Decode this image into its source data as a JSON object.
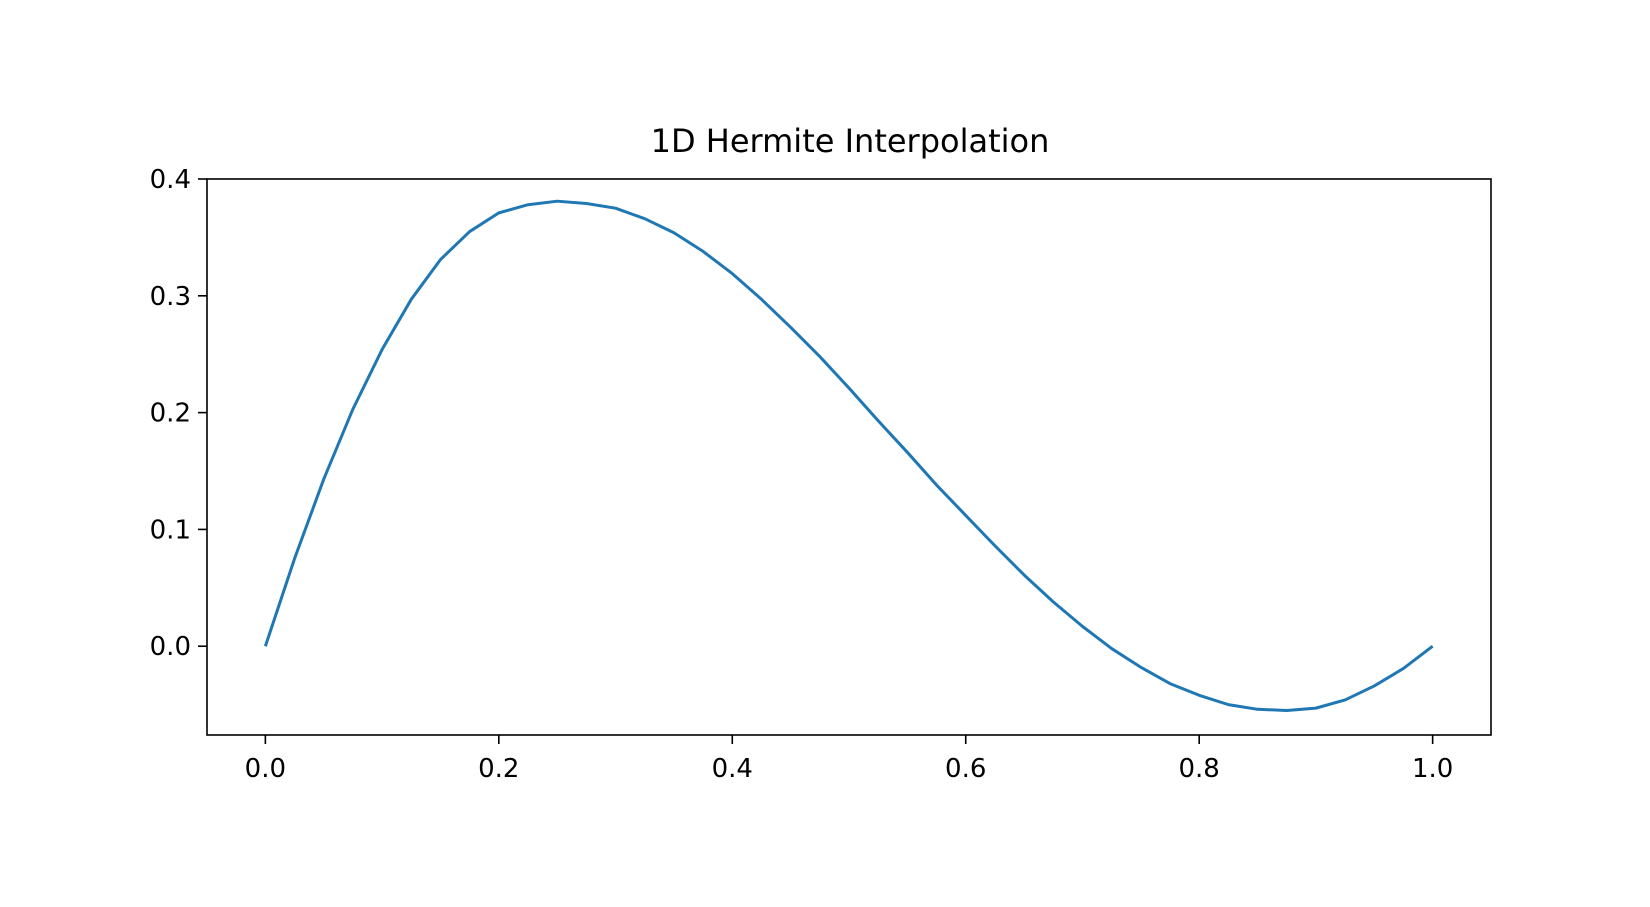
{
  "chart_data": {
    "type": "line",
    "title": "1D Hermite Interpolation",
    "xlabel": "",
    "ylabel": "",
    "xlim": [
      -0.05,
      1.05
    ],
    "ylim": [
      -0.076,
      0.4
    ],
    "x_ticks": [
      0.0,
      0.2,
      0.4,
      0.6,
      0.8,
      1.0
    ],
    "x_tick_labels": [
      "0.0",
      "0.2",
      "0.4",
      "0.6",
      "0.8",
      "1.0"
    ],
    "y_ticks": [
      0.0,
      0.1,
      0.2,
      0.3,
      0.4
    ],
    "y_tick_labels": [
      "0.0",
      "0.1",
      "0.2",
      "0.3",
      "0.4"
    ],
    "grid": false,
    "legend": "none",
    "series": [
      {
        "color": "#1f77b4",
        "x": [
          0.0,
          0.025,
          0.05,
          0.075,
          0.1,
          0.125,
          0.15,
          0.175,
          0.2,
          0.225,
          0.25,
          0.275,
          0.3,
          0.325,
          0.35,
          0.375,
          0.4,
          0.425,
          0.45,
          0.475,
          0.5,
          0.525,
          0.55,
          0.575,
          0.6,
          0.625,
          0.65,
          0.675,
          0.7,
          0.725,
          0.75,
          0.775,
          0.8,
          0.825,
          0.85,
          0.875,
          0.9,
          0.925,
          0.95,
          0.975,
          1.0
        ],
        "y": [
          0.0,
          0.075,
          0.143,
          0.203,
          0.254,
          0.297,
          0.331,
          0.355,
          0.371,
          0.378,
          0.381,
          0.379,
          0.375,
          0.366,
          0.354,
          0.338,
          0.319,
          0.297,
          0.273,
          0.248,
          0.221,
          0.193,
          0.166,
          0.138,
          0.112,
          0.086,
          0.061,
          0.038,
          0.017,
          -0.002,
          -0.018,
          -0.032,
          -0.042,
          -0.05,
          -0.054,
          -0.055,
          -0.053,
          -0.046,
          -0.034,
          -0.019,
          0.0
        ]
      }
    ]
  }
}
